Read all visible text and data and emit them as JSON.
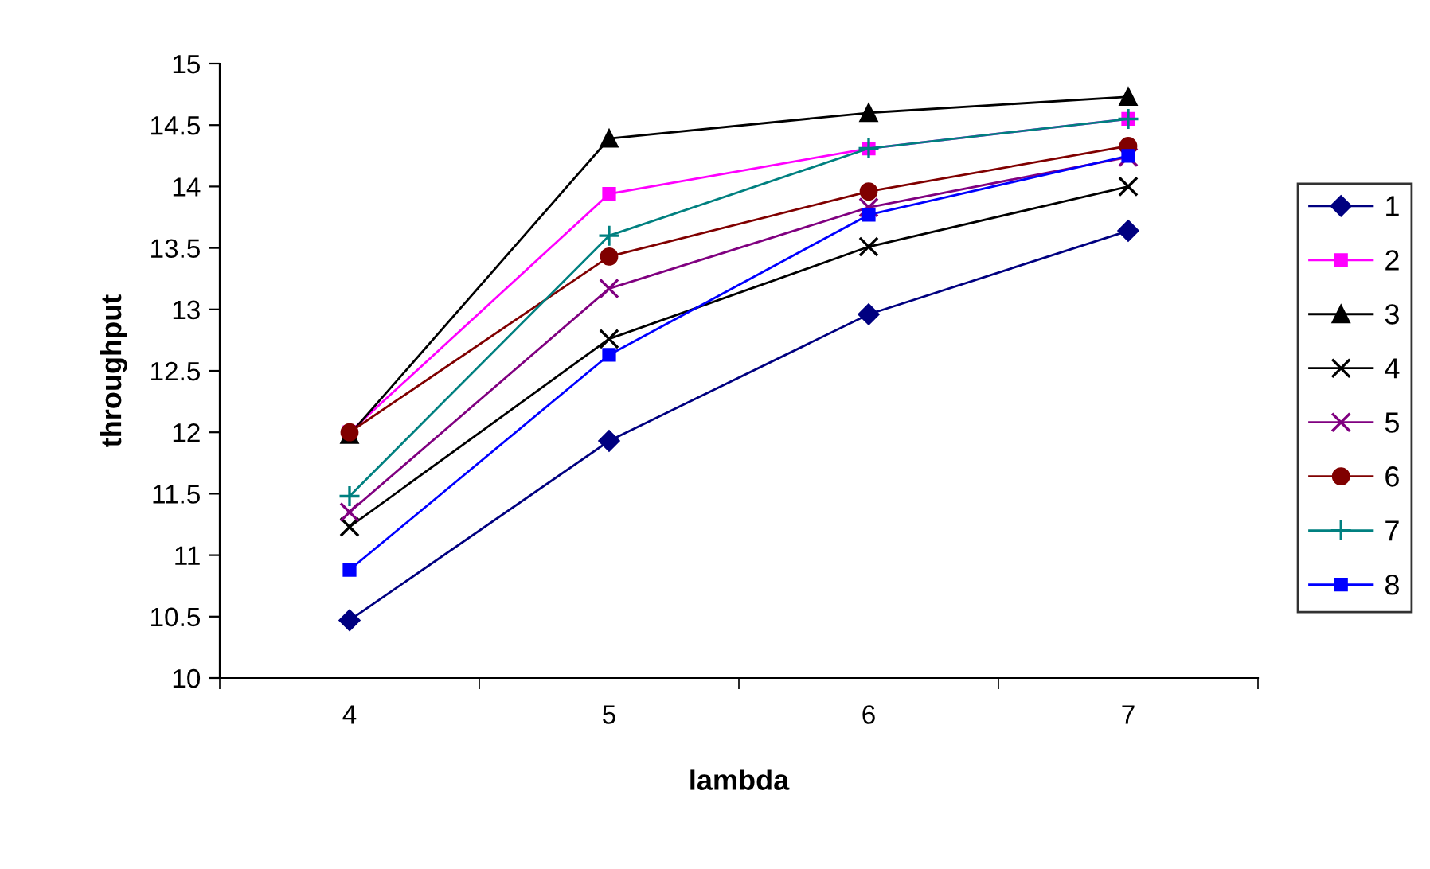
{
  "chart_data": {
    "type": "line",
    "xlabel": "lambda",
    "ylabel": "throughput",
    "categories": [
      "4",
      "5",
      "6",
      "7"
    ],
    "ylim": [
      10,
      15
    ],
    "yticks": [
      10,
      10.5,
      11,
      11.5,
      12,
      12.5,
      13,
      13.5,
      14,
      14.5,
      15
    ],
    "grid": false,
    "legend": "right",
    "line_style": "solid",
    "series": [
      {
        "name": "1",
        "color": "#000080",
        "marker": "diamond",
        "values": [
          10.47,
          11.93,
          12.96,
          13.64
        ]
      },
      {
        "name": "2",
        "color": "#ff00ff",
        "marker": "square",
        "values": [
          12.0,
          13.94,
          14.31,
          14.55
        ]
      },
      {
        "name": "3",
        "color": "#000000",
        "marker": "triangle",
        "values": [
          11.98,
          14.39,
          14.6,
          14.73
        ]
      },
      {
        "name": "4",
        "color": "#000000",
        "marker": "cross",
        "values": [
          11.23,
          12.76,
          13.51,
          14.0
        ]
      },
      {
        "name": "5",
        "color": "#800080",
        "marker": "cross",
        "values": [
          11.35,
          13.17,
          13.83,
          14.24
        ]
      },
      {
        "name": "6",
        "color": "#800000",
        "marker": "circle",
        "values": [
          12.0,
          13.43,
          13.96,
          14.33
        ]
      },
      {
        "name": "7",
        "color": "#008080",
        "marker": "plus",
        "values": [
          11.48,
          13.6,
          14.31,
          14.55
        ]
      },
      {
        "name": "8",
        "color": "#0000ff",
        "marker": "square",
        "values": [
          10.88,
          12.63,
          13.77,
          14.25
        ]
      }
    ]
  }
}
